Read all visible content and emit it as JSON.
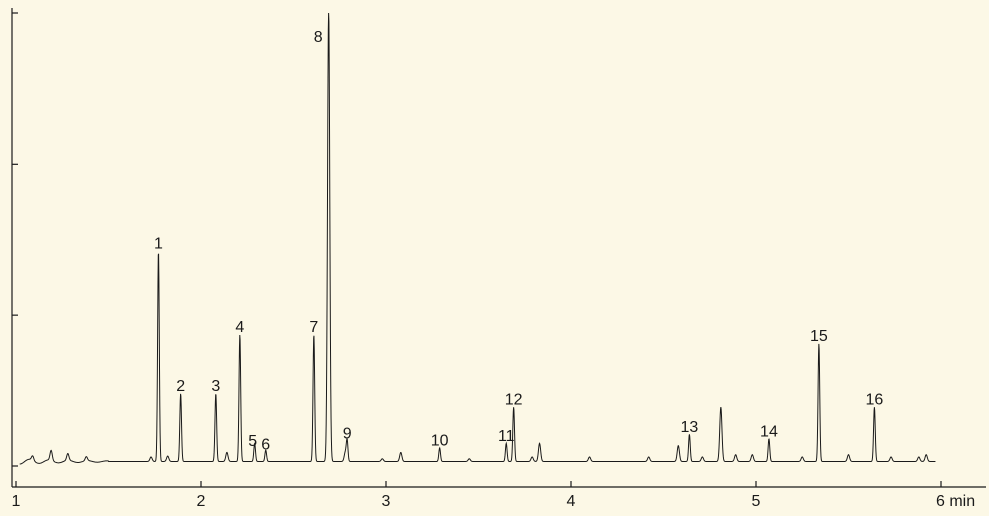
{
  "chart_data": {
    "type": "line",
    "title": "",
    "xlabel": "",
    "ylabel": "",
    "x_unit": "min",
    "xlim": [
      1,
      6
    ],
    "ylim": [
      0,
      100
    ],
    "x_ticks": [
      1,
      2,
      3,
      4,
      5,
      6
    ],
    "x_tick_labels": [
      "1",
      "2",
      "3",
      "4",
      "5",
      "6 min"
    ],
    "y_ticks": [
      0,
      33.3,
      66.6,
      100
    ],
    "y_tick_labels": [],
    "grid": false,
    "baseline": 1.0,
    "series": [
      {
        "peaks": [
          {
            "label": "1",
            "x": 1.77,
            "y": 46.5
          },
          {
            "label": "2",
            "x": 1.89,
            "y": 15.0
          },
          {
            "label": "3",
            "x": 2.08,
            "y": 15.0
          },
          {
            "label": "4",
            "x": 2.21,
            "y": 28.0
          },
          {
            "label": "5",
            "x": 2.29,
            "y": 4.0
          },
          {
            "label": "6",
            "x": 2.35,
            "y": 2.5
          },
          {
            "label": "7",
            "x": 2.61,
            "y": 28.0
          },
          {
            "label": "8",
            "x": 2.69,
            "y": 100
          },
          {
            "label": "9",
            "x": 2.79,
            "y": 4.5
          },
          {
            "label": "10",
            "x": 3.29,
            "y": 3.0
          },
          {
            "label": "11",
            "x": 3.65,
            "y": 4.0
          },
          {
            "label": "12",
            "x": 3.69,
            "y": 12.0
          },
          {
            "label": "13",
            "x": 4.64,
            "y": 6.0
          },
          {
            "label": "14",
            "x": 5.07,
            "y": 5.0
          },
          {
            "label": "15",
            "x": 5.34,
            "y": 26.0
          },
          {
            "label": "16",
            "x": 5.64,
            "y": 12.0
          }
        ],
        "minor_peaks": [
          {
            "x": 1.09,
            "y": 1.0
          },
          {
            "x": 1.19,
            "y": 2.2
          },
          {
            "x": 1.28,
            "y": 1.5
          },
          {
            "x": 1.38,
            "y": 0.9
          },
          {
            "x": 1.73,
            "y": 1.0
          },
          {
            "x": 1.82,
            "y": 1.2
          },
          {
            "x": 2.14,
            "y": 2.0
          },
          {
            "x": 2.78,
            "y": 2.0
          },
          {
            "x": 2.98,
            "y": 0.6
          },
          {
            "x": 3.08,
            "y": 2.0
          },
          {
            "x": 3.45,
            "y": 0.6
          },
          {
            "x": 3.79,
            "y": 1.0
          },
          {
            "x": 3.83,
            "y": 4.0
          },
          {
            "x": 4.1,
            "y": 1.0
          },
          {
            "x": 4.42,
            "y": 1.0
          },
          {
            "x": 4.58,
            "y": 3.5
          },
          {
            "x": 4.71,
            "y": 1.0
          },
          {
            "x": 4.81,
            "y": 12.0
          },
          {
            "x": 4.89,
            "y": 1.5
          },
          {
            "x": 4.98,
            "y": 1.5
          },
          {
            "x": 5.25,
            "y": 1.0
          },
          {
            "x": 5.5,
            "y": 1.5
          },
          {
            "x": 5.73,
            "y": 1.0
          },
          {
            "x": 5.88,
            "y": 1.0
          },
          {
            "x": 5.92,
            "y": 1.5
          }
        ]
      }
    ]
  },
  "colors": {
    "background": "#fcf8e6",
    "trace": "#1a1a1a",
    "axis": "#1a1a1a"
  }
}
